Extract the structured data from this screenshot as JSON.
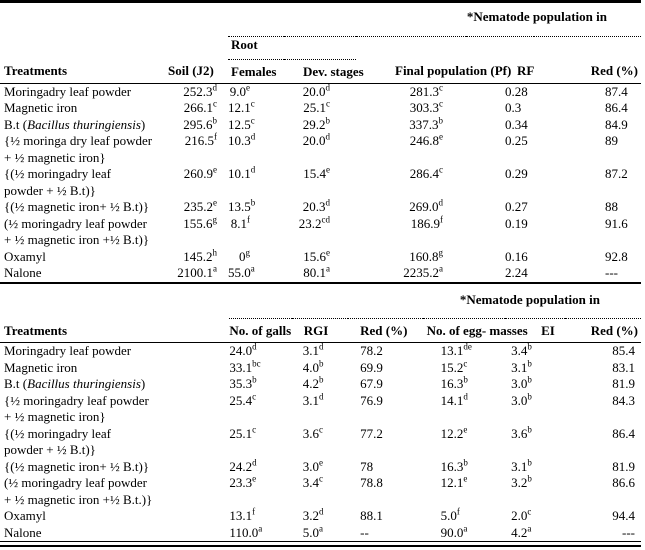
{
  "colors": {
    "background": "#ffffff",
    "rule": "#000000",
    "text": "#000000"
  },
  "table1": {
    "span_label": "*Nematode population in",
    "root_label": "Root",
    "columns": [
      "Treatments",
      "Soil (J2)",
      "Females",
      "Dev. stages",
      "Final population (Pf)",
      "RF",
      "Red (%)"
    ],
    "rows": [
      [
        "Moringadry leaf powder",
        "252.3^d",
        "9.0^e",
        "20.0^d",
        "281.3^c",
        "0.28",
        "87.4"
      ],
      [
        "Magnetic iron",
        "266.1^c",
        "12.1^c",
        "25.1^c",
        "303.3^c",
        "0.3",
        "86.4"
      ],
      [
        "B.t (*Bacillus thuringiensis*)",
        "295.6^b",
        "12.5^c",
        "29.2^b",
        "337.3^b",
        "0.34",
        "84.9"
      ],
      [
        "{½ moringa dry leaf powder\n+ ½ magnetic iron}",
        "216.5^f",
        "10.3^d",
        "20.0^d",
        "246.8^e",
        "0.25",
        "89"
      ],
      [
        "{(½ moringadry leaf\npowder + ½ B.t)}",
        "260.9^e",
        "10.1^d",
        "15.4^e",
        "286.4^c",
        "0.29",
        "87.2"
      ],
      [
        "{(½ magnetic iron+ ½ B.t)}",
        "235.2^e",
        "13.5^b",
        "20.3^d",
        "269.0^d",
        "0.27",
        "88"
      ],
      [
        "(½ moringadry leaf powder\n+ ½ magnetic iron +½ B.t)}",
        "155.6^g",
        "8.1^f",
        "23.2^cd",
        "186.9^f",
        "0.19",
        "91.6"
      ],
      [
        "Oxamyl",
        "145.2^h",
        "0^g",
        "15.6^e",
        "160.8^g",
        "0.16",
        "92.8"
      ],
      [
        "Nalone",
        "2100.1^a",
        "55.0^a",
        "80.1^a",
        "2235.2^a",
        "2.24",
        "---"
      ]
    ]
  },
  "table2": {
    "span_label": "*Nematode population in",
    "columns": [
      "Treatments",
      "No. of galls",
      "RGI",
      "Red (%)",
      "No. of egg- masses",
      "EI",
      "Red (%)"
    ],
    "rows": [
      [
        "Moringadry leaf powder",
        "24.0^d",
        "3.1^d",
        "78.2",
        "13.1^de",
        "3.4^b",
        "85.4"
      ],
      [
        "Magnetic iron",
        "33.1^bc",
        "4.0^b",
        "69.9",
        "15.2^c",
        "3.1^b",
        "83.1"
      ],
      [
        "B.t (*Bacillus thuringiensis*)",
        "35.3^b",
        "4.2^b",
        "67.9",
        "16.3^b",
        "3.0^b",
        "81.9"
      ],
      [
        "{½ moringadry leaf powder\n+ ½ magnetic iron}",
        "25.4^c",
        "3.1^d",
        "76.9",
        "14.1^d",
        "3.0^b",
        "84.3"
      ],
      [
        "{(½ moringadry leaf\npowder + ½ B.t)}",
        "25.1^c",
        "3.6^c",
        "77.2",
        "12.2^e",
        "3.6^b",
        "86.4"
      ],
      [
        "{(½ magnetic iron+ ½ B.t)}",
        "24.2^d",
        "3.0^e",
        "78",
        "16.3^b",
        "3.1^b",
        "81.9"
      ],
      [
        "(½ moringadry leaf powder\n+ ½ magnetic iron +½ B.t.)}",
        "23.3^e",
        "3.4^c",
        "78.8",
        "12.1^e",
        "3.2^b",
        "86.6"
      ],
      [
        "Oxamyl",
        "13.1^f",
        "3.2^d",
        "88.1",
        "5.0^f",
        "2.0^c",
        "94.4"
      ],
      [
        "Nalone",
        "110.0^a",
        "5.0^a",
        "--",
        "90.0^a",
        "4.2^a",
        "---"
      ]
    ]
  }
}
